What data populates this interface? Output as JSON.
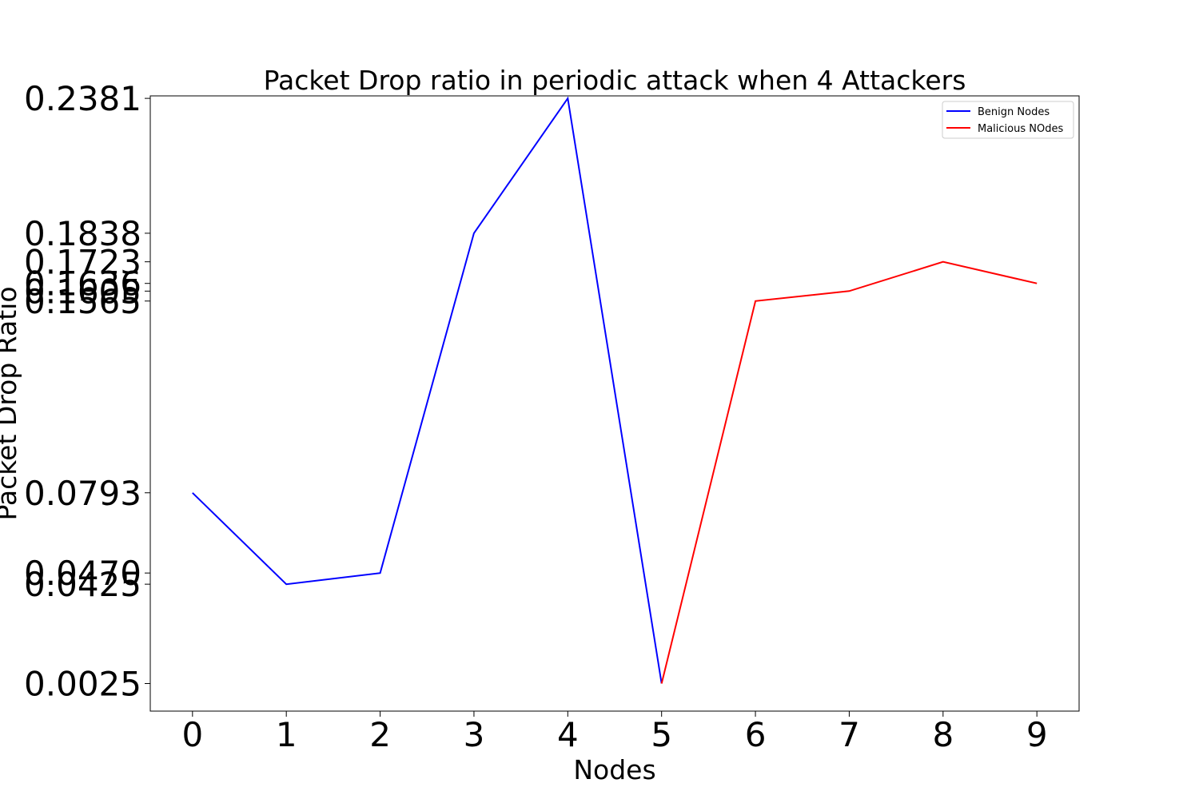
{
  "chart_data": {
    "type": "line",
    "title": "Packet Drop ratio in periodic attack when 4 Attackers",
    "xlabel": "Nodes",
    "ylabel": "Packet Drop Ratio",
    "x": [
      0,
      1,
      2,
      3,
      4,
      5,
      6,
      7,
      8,
      9
    ],
    "xlim": [
      -0.45,
      9.45
    ],
    "ylim": [
      -0.0086,
      0.2391
    ],
    "grid": false,
    "legend_position": "top-right",
    "yticks": [
      "0.0025",
      "0.0425",
      "0.0470",
      "0.0793",
      "0.1565",
      "0.1605",
      "0.1636",
      "0.1723",
      "0.1838",
      "0.2381"
    ],
    "ytick_values": [
      0.0025,
      0.0425,
      0.047,
      0.0793,
      0.1565,
      0.1605,
      0.1636,
      0.1723,
      0.1838,
      0.2381
    ],
    "series": [
      {
        "name": "Benign Nodes",
        "color": "#0000ff",
        "x": [
          0,
          1,
          2,
          3,
          4,
          5
        ],
        "y": [
          0.0793,
          0.0425,
          0.047,
          0.1838,
          0.2381,
          0.0025
        ]
      },
      {
        "name": "Malicious NOdes",
        "color": "#ff0000",
        "x": [
          5,
          6,
          7,
          8,
          9
        ],
        "y": [
          0.0025,
          0.1565,
          0.1605,
          0.1723,
          0.1636
        ]
      }
    ]
  }
}
